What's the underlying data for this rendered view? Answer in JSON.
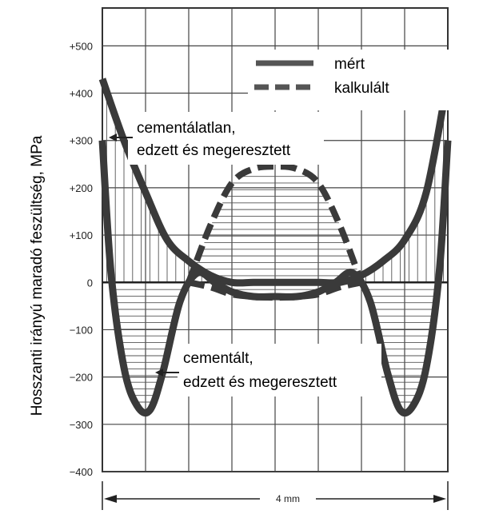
{
  "chart_data": {
    "type": "line",
    "ylabel": "Hosszanti irányú maradó feszültség, MPa",
    "xlabel": "",
    "yticks": [
      "+500",
      "+400",
      "+300",
      "+200",
      "+100",
      "0",
      "−100",
      "−200",
      "−300",
      "−400"
    ],
    "ytick_values": [
      500,
      400,
      300,
      200,
      100,
      0,
      -100,
      -200,
      -300,
      -400
    ],
    "ylim": [
      -400,
      580
    ],
    "x_span_mm": [
      0,
      4
    ],
    "dimension_label": "4 mm",
    "grid": true,
    "legend": {
      "position": "top-right",
      "entries": [
        {
          "label": "mért",
          "style": "solid"
        },
        {
          "label": "kalkulált",
          "style": "dashed"
        }
      ]
    },
    "annotations": [
      {
        "lines": [
          "cementálatlan,",
          "edzett és megeresztett"
        ]
      },
      {
        "lines": [
          "cementált,",
          "edzett és megeresztett"
        ]
      }
    ],
    "series": [
      {
        "name": "mért",
        "note": "cementálatlan, edzett és megeresztett",
        "style": "solid",
        "x": [
          0,
          0.25,
          0.5,
          0.75,
          1.0,
          1.25,
          1.5,
          1.75,
          2.0,
          2.25,
          2.5,
          2.75,
          3.0,
          3.25,
          3.5,
          3.75,
          4.0
        ],
        "y": [
          430,
          300,
          190,
          90,
          45,
          15,
          0,
          0,
          0,
          0,
          0,
          0,
          15,
          45,
          90,
          190,
          430
        ]
      },
      {
        "name": "kalkulált",
        "note": "cementálatlan, edzett és megeresztett",
        "style": "dashed",
        "x": [
          1.0,
          1.25,
          1.5,
          1.75,
          2.0,
          2.25,
          2.5,
          2.75,
          3.0
        ],
        "y": [
          0,
          120,
          210,
          240,
          245,
          240,
          210,
          120,
          0
        ]
      },
      {
        "name": "mért",
        "note": "cementált, edzett és megeresztett",
        "style": "solid",
        "x": [
          0,
          0.1,
          0.25,
          0.4,
          0.55,
          0.7,
          0.9,
          1.1,
          1.3,
          1.5,
          1.75,
          2.0,
          2.25,
          2.5,
          2.7,
          2.9,
          3.1,
          3.3,
          3.45,
          3.6,
          3.75,
          3.9,
          4.0
        ],
        "y": [
          300,
          20,
          -180,
          -260,
          -270,
          -190,
          -40,
          20,
          0,
          -20,
          -30,
          -30,
          -30,
          -20,
          0,
          20,
          -40,
          -190,
          -270,
          -260,
          -180,
          20,
          300
        ]
      },
      {
        "name": "kalkulált",
        "note": "cementált, edzett és megeresztett",
        "style": "dashed",
        "x": [
          1.0,
          1.25,
          1.5,
          1.75,
          2.0,
          2.25,
          2.5,
          2.75,
          3.0
        ],
        "y": [
          0,
          -10,
          -25,
          -30,
          -32,
          -30,
          -25,
          -10,
          0
        ]
      }
    ]
  }
}
